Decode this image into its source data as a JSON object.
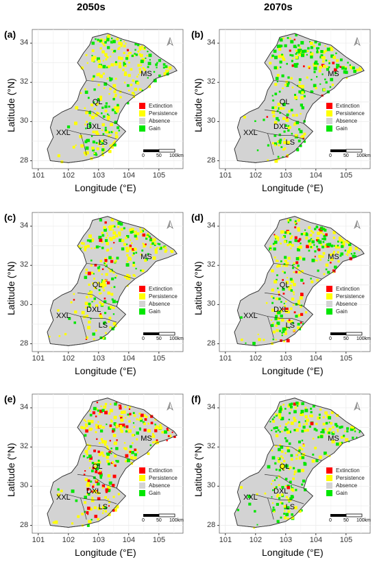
{
  "columns": [
    "2050s",
    "2070s"
  ],
  "axes": {
    "xlabel": "Longitude (°E)",
    "ylabel": "Latitude (°N)",
    "xticks": [
      "101",
      "102",
      "103",
      "104",
      "105"
    ],
    "yticks": [
      "34",
      "32",
      "30",
      "28"
    ]
  },
  "regions": [
    "MS",
    "QL",
    "DXL",
    "XXL",
    "LS"
  ],
  "legend": [
    {
      "label": "Extinction",
      "color": "#ff0000"
    },
    {
      "label": "Persistence",
      "color": "#ffff00"
    },
    {
      "label": "Absence",
      "color": "#d3d3d3"
    },
    {
      "label": "Gain",
      "color": "#00e600"
    }
  ],
  "scale": {
    "labels": [
      "0",
      "50",
      "100km"
    ]
  },
  "panels": [
    {
      "label": "(a)",
      "extinction": 0.02,
      "persistence": 0.6,
      "gain": 0.35
    },
    {
      "label": "(b)",
      "extinction": 0.05,
      "persistence": 0.35,
      "gain": 0.45
    },
    {
      "label": "(c)",
      "extinction": 0.08,
      "persistence": 0.55,
      "gain": 0.3
    },
    {
      "label": "(d)",
      "extinction": 0.15,
      "persistence": 0.45,
      "gain": 0.35
    },
    {
      "label": "(e)",
      "extinction": 0.18,
      "persistence": 0.6,
      "gain": 0.2
    },
    {
      "label": "(f)",
      "extinction": 0.02,
      "persistence": 0.4,
      "gain": 0.55
    }
  ]
}
